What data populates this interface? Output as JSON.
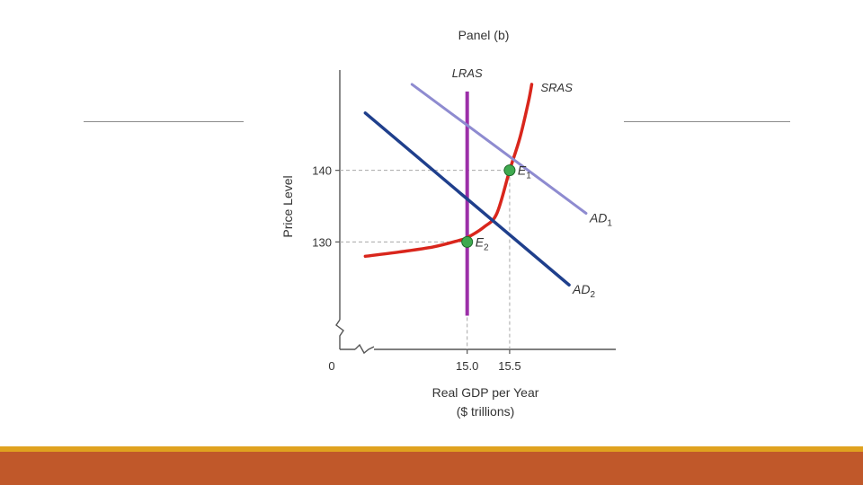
{
  "slide": {
    "colors": {
      "rule": "#8c8c8c",
      "footer_gold": "#e0a21f",
      "footer_band": "#c0582a"
    }
  },
  "chart_data": {
    "type": "line",
    "title": "Panel (b)",
    "xlabel_line1": "Real GDP per Year",
    "xlabel_line2": "($ trillions)",
    "ylabel": "Price Level",
    "origin_label": "0",
    "x_ticks": [
      {
        "value": 15.0,
        "label": "15.0"
      },
      {
        "value": 15.5,
        "label": "15.5"
      }
    ],
    "y_ticks": [
      {
        "value": 140,
        "label": "140"
      },
      {
        "value": 130,
        "label": "130"
      }
    ],
    "xlim": [
      13.5,
      16.75
    ],
    "ylim": [
      115,
      154
    ],
    "axis_breaks": true,
    "series": [
      {
        "name": "LRAS",
        "label": "LRAS",
        "color": "#9c2fa8",
        "kind": "vertical",
        "x": 15.0,
        "y_range": [
          119.7,
          151
        ]
      },
      {
        "name": "SRAS",
        "label": "SRAS",
        "color": "#d9261c",
        "points": [
          [
            13.8,
            128.0
          ],
          [
            14.2,
            128.6
          ],
          [
            14.6,
            129.3
          ],
          [
            14.9,
            130.2
          ],
          [
            15.0,
            130.6
          ],
          [
            15.2,
            132.1
          ],
          [
            15.35,
            134.0
          ],
          [
            15.5,
            140.0
          ],
          [
            15.62,
            144.5
          ],
          [
            15.72,
            149.5
          ],
          [
            15.76,
            152.0
          ]
        ]
      },
      {
        "name": "AD1",
        "label": "AD",
        "label_sub": "1",
        "color": "#8e8bd0",
        "points": [
          [
            14.35,
            152.0
          ],
          [
            16.4,
            134.0
          ]
        ]
      },
      {
        "name": "AD2",
        "label": "AD",
        "label_sub": "2",
        "color": "#1f3f8c",
        "points": [
          [
            13.8,
            148.0
          ],
          [
            16.2,
            124.0
          ]
        ]
      }
    ],
    "points": [
      {
        "label": "E",
        "sub": "1",
        "x": 15.5,
        "y": 140
      },
      {
        "label": "E",
        "sub": "2",
        "x": 15.0,
        "y": 130
      }
    ],
    "point_color": "#3faa4f",
    "guide_color": "#a8a8a8"
  }
}
